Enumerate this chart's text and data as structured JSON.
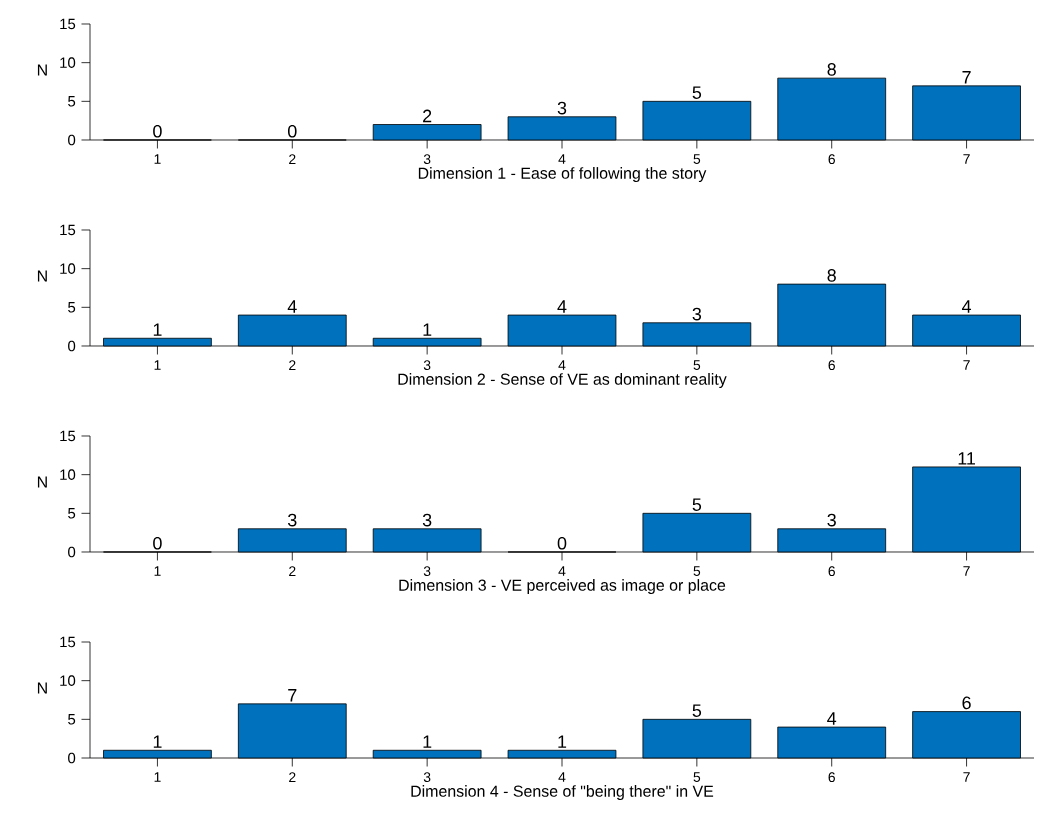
{
  "chart_data": [
    {
      "type": "bar",
      "categories": [
        "1",
        "2",
        "3",
        "4",
        "5",
        "6",
        "7"
      ],
      "values": [
        0,
        0,
        2,
        3,
        5,
        8,
        7
      ],
      "color": "#0072bd",
      "ylabel": "N",
      "xlabel": "Dimension 1 - Ease of following the story",
      "ylim": [
        0,
        15
      ],
      "yticks": [
        0,
        5,
        10,
        15
      ],
      "data_labels": true
    },
    {
      "type": "bar",
      "categories": [
        "1",
        "2",
        "3",
        "4",
        "5",
        "6",
        "7"
      ],
      "values": [
        1,
        4,
        1,
        4,
        3,
        8,
        4
      ],
      "color": "#0072bd",
      "ylabel": "N",
      "xlabel": "Dimension 2 - Sense of VE as dominant reality",
      "ylim": [
        0,
        15
      ],
      "yticks": [
        0,
        5,
        10,
        15
      ],
      "data_labels": true
    },
    {
      "type": "bar",
      "categories": [
        "1",
        "2",
        "3",
        "4",
        "5",
        "6",
        "7"
      ],
      "values": [
        0,
        3,
        3,
        0,
        5,
        3,
        11
      ],
      "color": "#0072bd",
      "ylabel": "N",
      "xlabel": "Dimension 3 - VE perceived as image or place",
      "ylim": [
        0,
        15
      ],
      "yticks": [
        0,
        5,
        10,
        15
      ],
      "data_labels": true
    },
    {
      "type": "bar",
      "categories": [
        "1",
        "2",
        "3",
        "4",
        "5",
        "6",
        "7"
      ],
      "values": [
        1,
        7,
        1,
        1,
        5,
        4,
        6
      ],
      "color": "#0072bd",
      "ylabel": "N",
      "xlabel": "Dimension 4 - Sense of \"being there\" in VE",
      "ylim": [
        0,
        15
      ],
      "yticks": [
        0,
        5,
        10,
        15
      ],
      "data_labels": true
    }
  ]
}
